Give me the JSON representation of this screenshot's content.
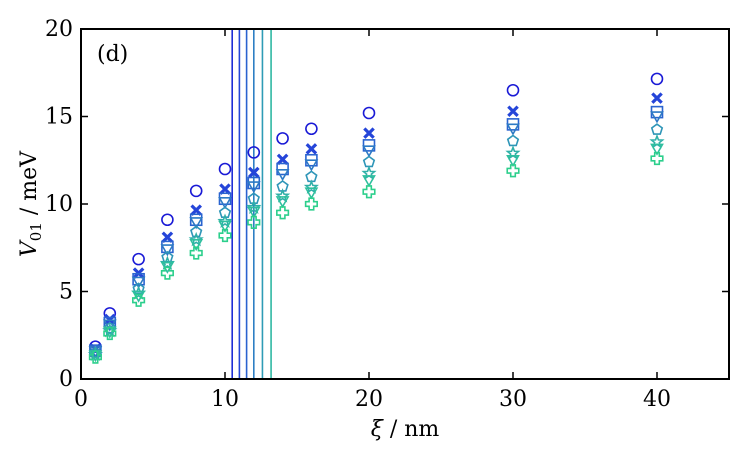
{
  "chart_data": {
    "type": "scatter",
    "panel_label": "(d)",
    "xlabel_symbol": "ξ",
    "xlabel_unit": " / nm",
    "ylabel_symbol": "V",
    "ylabel_subscript": "01",
    "ylabel_unit": " / meV",
    "xlim": [
      0,
      45
    ],
    "ylim": [
      0,
      20
    ],
    "x_ticks": [
      0,
      10,
      20,
      30,
      40
    ],
    "y_ticks": [
      0,
      5,
      10,
      15,
      20
    ],
    "x_tick_labels": [
      "0",
      "10",
      "20",
      "30",
      "40"
    ],
    "y_tick_labels": [
      "0",
      "5",
      "10",
      "15",
      "20"
    ],
    "grid": false,
    "x": [
      1,
      2,
      4,
      6,
      8,
      10,
      12,
      14,
      16,
      20,
      30,
      40
    ],
    "vertical_lines": [
      {
        "x": 10.5,
        "color": "#1f2fd6"
      },
      {
        "x": 11.0,
        "color": "#2347d8"
      },
      {
        "x": 11.5,
        "color": "#2a62cf"
      },
      {
        "x": 12.0,
        "color": "#2e7fc4"
      },
      {
        "x": 12.6,
        "color": "#2f9cb6"
      },
      {
        "x": 13.2,
        "color": "#2fb8a3"
      }
    ],
    "series": [
      {
        "marker": "circle",
        "color": "#1a1ad6",
        "values": [
          1.85,
          3.75,
          6.85,
          9.1,
          10.75,
          12.0,
          12.95,
          13.75,
          14.3,
          15.2,
          16.5,
          17.15
        ]
      },
      {
        "marker": "x",
        "color": "#2545d9",
        "values": [
          1.7,
          3.4,
          6.05,
          8.1,
          9.65,
          10.85,
          11.8,
          12.55,
          13.15,
          14.05,
          15.3,
          16.05
        ]
      },
      {
        "marker": "square",
        "color": "#2a64d0",
        "values": [
          1.62,
          3.2,
          5.7,
          7.55,
          9.1,
          10.3,
          11.2,
          12.0,
          12.5,
          13.35,
          14.55,
          15.25
        ]
      },
      {
        "marker": "triangle-down",
        "color": "#2d7ac5",
        "values": [
          1.58,
          3.1,
          5.55,
          7.4,
          8.95,
          10.1,
          11.0,
          11.7,
          12.25,
          13.05,
          14.3,
          15.0
        ]
      },
      {
        "marker": "pentagon",
        "color": "#2f96b8",
        "values": [
          1.48,
          2.9,
          5.15,
          6.95,
          8.4,
          9.5,
          10.3,
          11.0,
          11.55,
          12.4,
          13.6,
          14.25
        ]
      },
      {
        "marker": "star",
        "color": "#2fb0a8",
        "values": [
          1.4,
          2.75,
          4.9,
          6.6,
          7.95,
          9.0,
          9.8,
          10.45,
          10.95,
          11.75,
          12.9,
          13.55
        ]
      },
      {
        "marker": "triangle-down",
        "color": "#2fbf9e",
        "values": [
          1.35,
          2.7,
          4.75,
          6.4,
          7.7,
          8.75,
          9.55,
          10.15,
          10.65,
          11.35,
          12.5,
          13.15
        ]
      },
      {
        "marker": "plus",
        "color": "#2ccf8c",
        "values": [
          1.25,
          2.6,
          4.5,
          6.05,
          7.2,
          8.2,
          8.95,
          9.5,
          10.0,
          10.7,
          11.9,
          12.6
        ]
      }
    ]
  }
}
